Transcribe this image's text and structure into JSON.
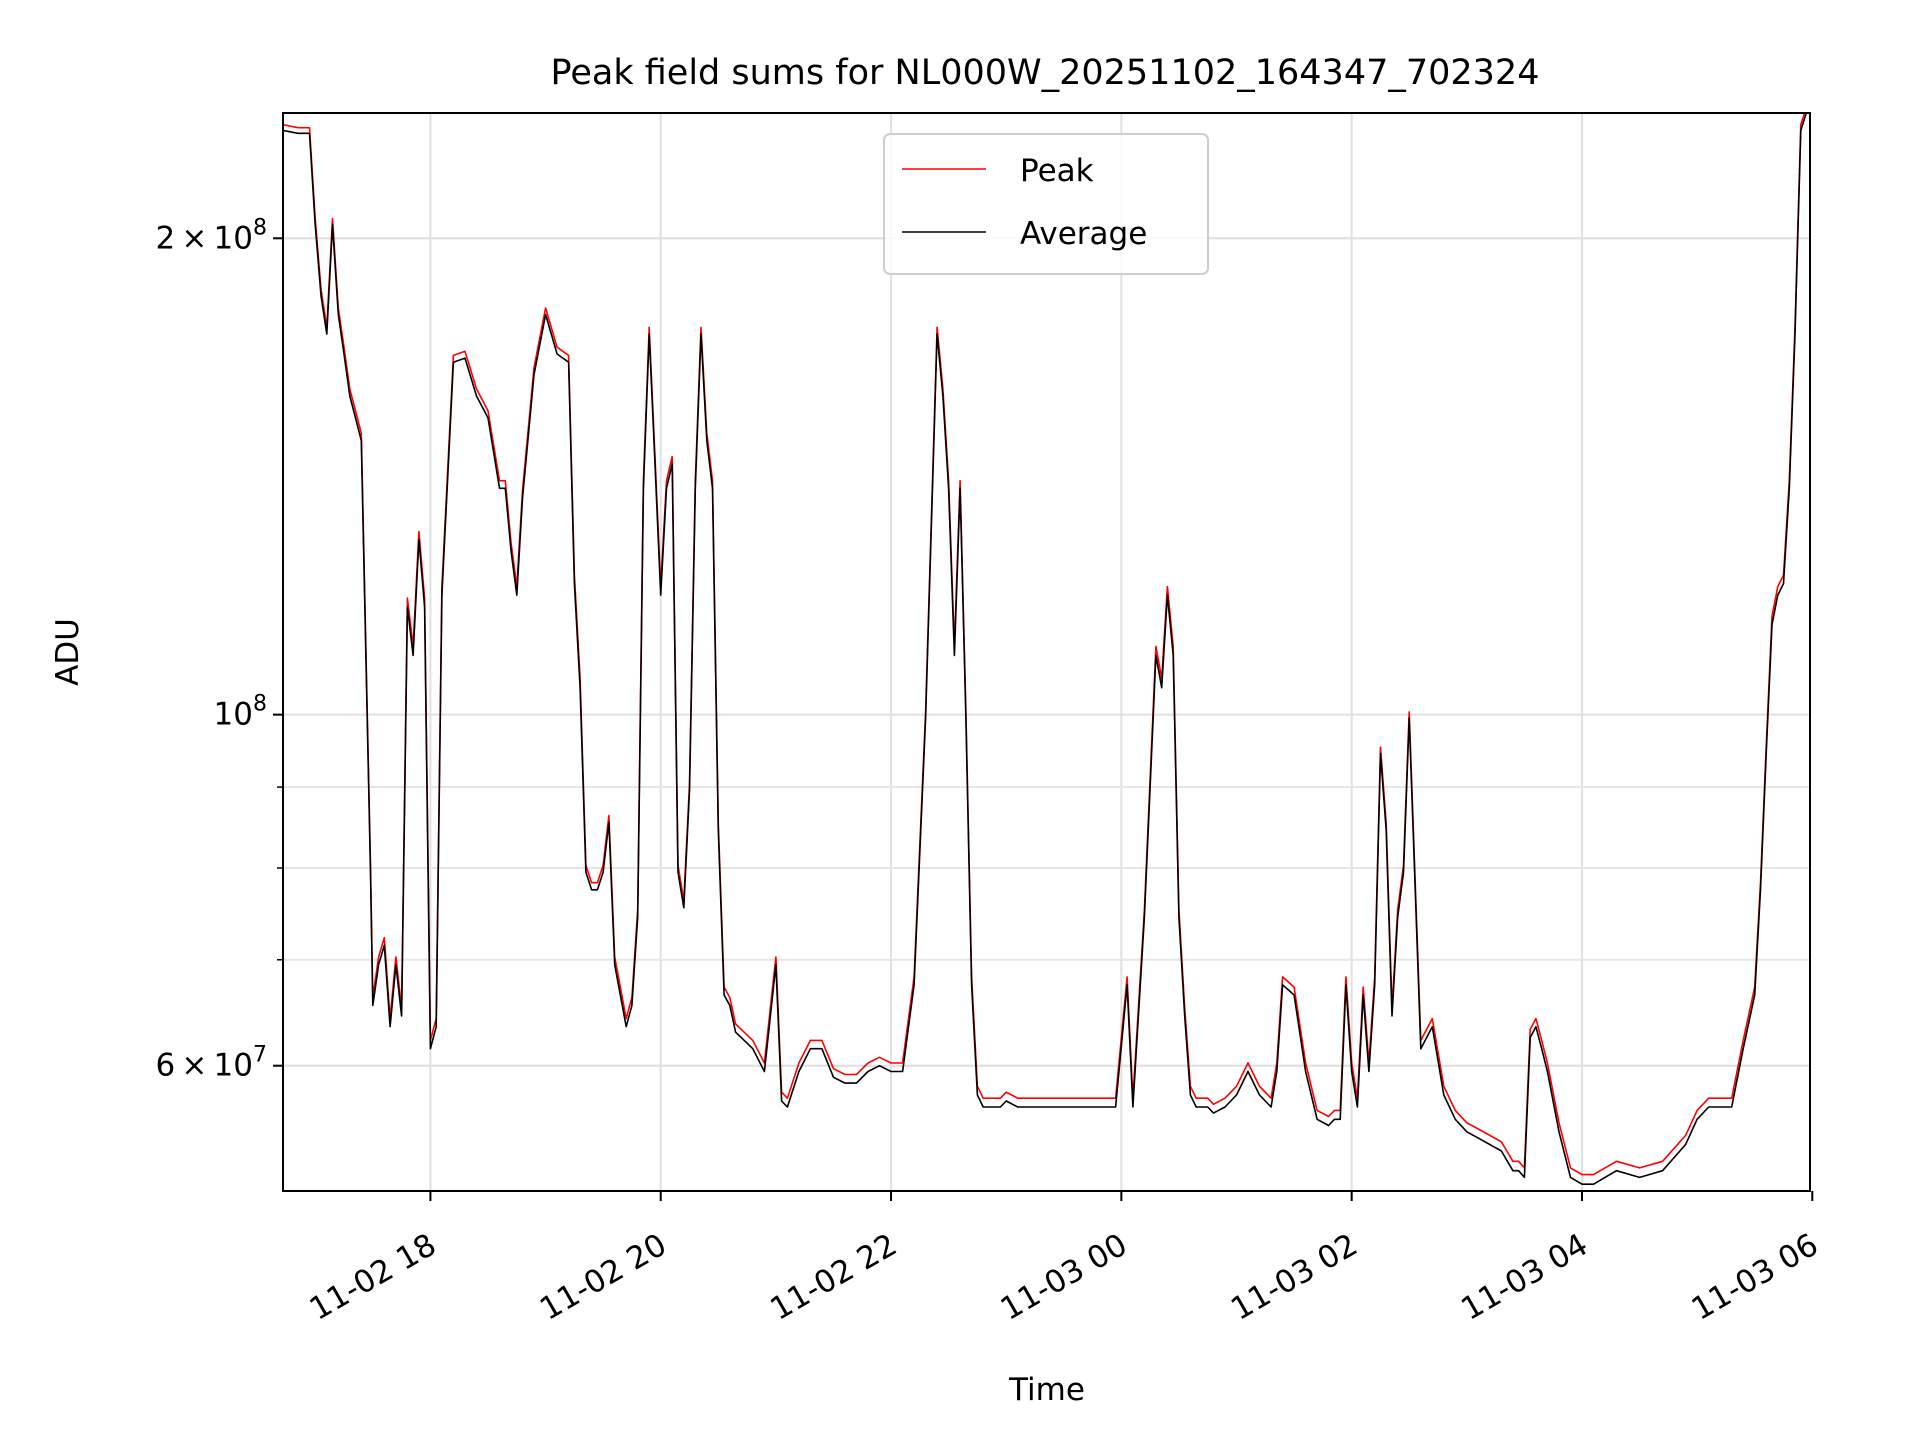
{
  "chart_data": {
    "type": "line",
    "title": "Peak field sums for NL000W_20251102_164347_702324",
    "xlabel": "Time",
    "ylabel": "ADU",
    "yscale": "log",
    "grid": true,
    "legend_position": "top-center",
    "xlim_hours": [
      16.72,
      29.98
    ],
    "ylim": [
      50000000,
      240000000
    ],
    "x_ticks": [
      {
        "hour": 18,
        "label": "11-02 18"
      },
      {
        "hour": 20,
        "label": "11-02 20"
      },
      {
        "hour": 22,
        "label": "11-02 22"
      },
      {
        "hour": 24,
        "label": "11-03 00"
      },
      {
        "hour": 26,
        "label": "11-03 02"
      },
      {
        "hour": 28,
        "label": "11-03 04"
      },
      {
        "hour": 30,
        "label": "11-03 06"
      }
    ],
    "y_major_ticks": [
      {
        "value": 60000000,
        "mantissa": "6",
        "times": "×",
        "base": "10",
        "exp": "7"
      },
      {
        "value": 100000000,
        "mantissa": "",
        "times": "",
        "base": "10",
        "exp": "8"
      },
      {
        "value": 200000000,
        "mantissa": "2",
        "times": "×",
        "base": "10",
        "exp": "8"
      }
    ],
    "y_minor_ticks": [
      60000000,
      70000000,
      80000000,
      90000000,
      200000000
    ],
    "series": [
      {
        "name": "Peak",
        "color": "#ff0000",
        "y_offset_factor": 1.004,
        "x": [
          16.72,
          16.85,
          16.95,
          17.0,
          17.05,
          17.1,
          17.15,
          17.2,
          17.25,
          17.3,
          17.35,
          17.4,
          17.48,
          17.5,
          17.55,
          17.6,
          17.65,
          17.7,
          17.75,
          17.8,
          17.85,
          17.9,
          17.95,
          18.0,
          18.05,
          18.1,
          18.2,
          18.3,
          18.4,
          18.5,
          18.6,
          18.65,
          18.7,
          18.75,
          18.8,
          18.9,
          19.0,
          19.1,
          19.2,
          19.25,
          19.3,
          19.35,
          19.4,
          19.45,
          19.5,
          19.55,
          19.6,
          19.7,
          19.75,
          19.8,
          19.85,
          19.9,
          19.95,
          20.0,
          20.05,
          20.1,
          20.15,
          20.2,
          20.25,
          20.3,
          20.35,
          20.4,
          20.45,
          20.5,
          20.55,
          20.6,
          20.65,
          20.7,
          20.8,
          20.9,
          21.0,
          21.05,
          21.1,
          21.2,
          21.3,
          21.4,
          21.5,
          21.6,
          21.7,
          21.8,
          21.9,
          22.0,
          22.1,
          22.2,
          22.3,
          22.4,
          22.45,
          22.5,
          22.55,
          22.6,
          22.65,
          22.7,
          22.75,
          22.8,
          22.85,
          22.9,
          22.95,
          23.0,
          23.1,
          23.3,
          23.5,
          23.7,
          23.95,
          24.05,
          24.1,
          24.2,
          24.3,
          24.35,
          24.4,
          24.45,
          24.5,
          24.55,
          24.6,
          24.65,
          24.7,
          24.75,
          24.8,
          24.9,
          25.0,
          25.1,
          25.2,
          25.3,
          25.35,
          25.4,
          25.5,
          25.6,
          25.7,
          25.8,
          25.85,
          25.9,
          25.95,
          26.0,
          26.05,
          26.1,
          26.15,
          26.2,
          26.25,
          26.3,
          26.35,
          26.4,
          26.45,
          26.5,
          26.6,
          26.7,
          26.8,
          26.9,
          27.0,
          27.1,
          27.3,
          27.4,
          27.45,
          27.5,
          27.55,
          27.6,
          27.65,
          27.7,
          27.8,
          27.9,
          28.0,
          28.1,
          28.3,
          28.5,
          28.7,
          28.9,
          29.0,
          29.1,
          29.2,
          29.3,
          29.4,
          29.5,
          29.55,
          29.6,
          29.65,
          29.7,
          29.75,
          29.8,
          29.85,
          29.9,
          29.98
        ],
        "y": [
          235000000,
          234000000,
          234000000,
          205000000,
          185000000,
          175000000,
          205000000,
          180000000,
          170000000,
          160000000,
          155000000,
          150000000,
          80000000,
          66000000,
          70000000,
          72000000,
          64000000,
          70000000,
          65000000,
          118000000,
          110000000,
          130000000,
          118000000,
          62000000,
          64000000,
          120000000,
          168000000,
          169000000,
          160000000,
          155000000,
          140000000,
          140000000,
          128000000,
          120000000,
          138000000,
          165000000,
          180000000,
          170000000,
          168000000,
          122000000,
          105000000,
          80000000,
          78000000,
          78000000,
          80000000,
          86000000,
          70000000,
          64000000,
          66000000,
          75000000,
          140000000,
          175000000,
          145000000,
          120000000,
          140000000,
          145000000,
          80000000,
          76000000,
          90000000,
          140000000,
          175000000,
          150000000,
          140000000,
          85000000,
          67000000,
          66000000,
          63500000,
          63000000,
          62000000,
          60000000,
          70000000,
          57500000,
          57000000,
          60000000,
          62000000,
          62000000,
          59500000,
          59000000,
          59000000,
          60000000,
          60500000,
          60000000,
          60000000,
          68000000,
          100000000,
          175000000,
          160000000,
          140000000,
          110000000,
          140000000,
          100000000,
          68000000,
          58000000,
          57000000,
          57000000,
          57000000,
          57000000,
          57500000,
          57000000,
          57000000,
          57000000,
          57000000,
          57000000,
          68000000,
          57000000,
          75000000,
          110000000,
          105000000,
          120000000,
          110000000,
          75000000,
          65000000,
          58000000,
          57000000,
          57000000,
          57000000,
          56500000,
          57000000,
          58000000,
          60000000,
          58000000,
          57000000,
          60000000,
          68000000,
          67000000,
          60000000,
          56000000,
          55500000,
          56000000,
          56000000,
          68000000,
          60000000,
          57000000,
          67000000,
          60000000,
          68000000,
          95000000,
          85000000,
          65000000,
          75000000,
          80000000,
          100000000,
          62000000,
          64000000,
          58000000,
          56000000,
          55000000,
          54500000,
          53500000,
          52000000,
          52000000,
          51500000,
          63000000,
          64000000,
          62000000,
          60000000,
          55000000,
          51500000,
          51000000,
          51000000,
          52000000,
          51500000,
          52000000,
          54000000,
          56000000,
          57000000,
          57000000,
          57000000,
          62000000,
          67000000,
          78000000,
          95000000,
          115000000,
          120000000,
          122000000,
          140000000,
          175000000,
          235000000,
          245000000
        ]
      },
      {
        "name": "Average",
        "color": "#000000",
        "y_offset_factor": 1.0,
        "x": [
          16.72,
          16.85,
          16.95,
          17.0,
          17.05,
          17.1,
          17.15,
          17.2,
          17.25,
          17.3,
          17.35,
          17.4,
          17.48,
          17.5,
          17.55,
          17.6,
          17.65,
          17.7,
          17.75,
          17.8,
          17.85,
          17.9,
          17.95,
          18.0,
          18.05,
          18.1,
          18.2,
          18.3,
          18.4,
          18.5,
          18.6,
          18.65,
          18.7,
          18.75,
          18.8,
          18.9,
          19.0,
          19.1,
          19.2,
          19.25,
          19.3,
          19.35,
          19.4,
          19.45,
          19.5,
          19.55,
          19.6,
          19.7,
          19.75,
          19.8,
          19.85,
          19.9,
          19.95,
          20.0,
          20.05,
          20.1,
          20.15,
          20.2,
          20.25,
          20.3,
          20.35,
          20.4,
          20.45,
          20.5,
          20.55,
          20.6,
          20.65,
          20.7,
          20.8,
          20.9,
          21.0,
          21.05,
          21.1,
          21.2,
          21.3,
          21.4,
          21.5,
          21.6,
          21.7,
          21.8,
          21.9,
          22.0,
          22.1,
          22.2,
          22.3,
          22.4,
          22.45,
          22.5,
          22.55,
          22.6,
          22.65,
          22.7,
          22.75,
          22.8,
          22.85,
          22.9,
          22.95,
          23.0,
          23.1,
          23.3,
          23.5,
          23.7,
          23.95,
          24.05,
          24.1,
          24.2,
          24.3,
          24.35,
          24.4,
          24.45,
          24.5,
          24.55,
          24.6,
          24.65,
          24.7,
          24.75,
          24.8,
          24.9,
          25.0,
          25.1,
          25.2,
          25.3,
          25.35,
          25.4,
          25.5,
          25.6,
          25.7,
          25.8,
          25.85,
          25.9,
          25.95,
          26.0,
          26.05,
          26.1,
          26.15,
          26.2,
          26.25,
          26.3,
          26.35,
          26.4,
          26.45,
          26.5,
          26.6,
          26.7,
          26.8,
          26.9,
          27.0,
          27.1,
          27.3,
          27.4,
          27.45,
          27.5,
          27.55,
          27.6,
          27.65,
          27.7,
          27.8,
          27.9,
          28.0,
          28.1,
          28.3,
          28.5,
          28.7,
          28.9,
          29.0,
          29.1,
          29.2,
          29.3,
          29.4,
          29.5,
          29.55,
          29.6,
          29.65,
          29.7,
          29.75,
          29.8,
          29.85,
          29.9,
          29.98
        ],
        "y": [
          234000000,
          233000000,
          233000000,
          204000000,
          184000000,
          174000000,
          204000000,
          179000000,
          169000000,
          159000000,
          154000000,
          149000000,
          79500000,
          65500000,
          69500000,
          71500000,
          63500000,
          69500000,
          64500000,
          117000000,
          109000000,
          129000000,
          117000000,
          61500000,
          63500000,
          119000000,
          167000000,
          168000000,
          159000000,
          154000000,
          139000000,
          139000000,
          127000000,
          119000000,
          137000000,
          164000000,
          179000000,
          169000000,
          167000000,
          121000000,
          104000000,
          79500000,
          77500000,
          77500000,
          79500000,
          85500000,
          69500000,
          63500000,
          65500000,
          74500000,
          139000000,
          174000000,
          144000000,
          119000000,
          139000000,
          144000000,
          79500000,
          75500000,
          89500000,
          139000000,
          174000000,
          149000000,
          139000000,
          84500000,
          66500000,
          65500000,
          63000000,
          62500000,
          61500000,
          59500000,
          69500000,
          57000000,
          56500000,
          59500000,
          61500000,
          61500000,
          59000000,
          58500000,
          58500000,
          59500000,
          60000000,
          59500000,
          59500000,
          67500000,
          99500000,
          174000000,
          159000000,
          139000000,
          109000000,
          139000000,
          99500000,
          67500000,
          57500000,
          56500000,
          56500000,
          56500000,
          56500000,
          57000000,
          56500000,
          56500000,
          56500000,
          56500000,
          56500000,
          67500000,
          56500000,
          74500000,
          109000000,
          104000000,
          119000000,
          109000000,
          74500000,
          64500000,
          57500000,
          56500000,
          56500000,
          56500000,
          56000000,
          56500000,
          57500000,
          59500000,
          57500000,
          56500000,
          59500000,
          67500000,
          66500000,
          59500000,
          55500000,
          55000000,
          55500000,
          55500000,
          67500000,
          59500000,
          56500000,
          66500000,
          59500000,
          67500000,
          94500000,
          84500000,
          64500000,
          74500000,
          79500000,
          99500000,
          61500000,
          63500000,
          57500000,
          55500000,
          54500000,
          54000000,
          53000000,
          51500000,
          51500000,
          51000000,
          62500000,
          63500000,
          61500000,
          59500000,
          54500000,
          51000000,
          50500000,
          50500000,
          51500000,
          51000000,
          51500000,
          53500000,
          55500000,
          56500000,
          56500000,
          56500000,
          61500000,
          66500000,
          77500000,
          94500000,
          114000000,
          119000000,
          121000000,
          139000000,
          174000000,
          234000000,
          244000000
        ]
      }
    ]
  }
}
